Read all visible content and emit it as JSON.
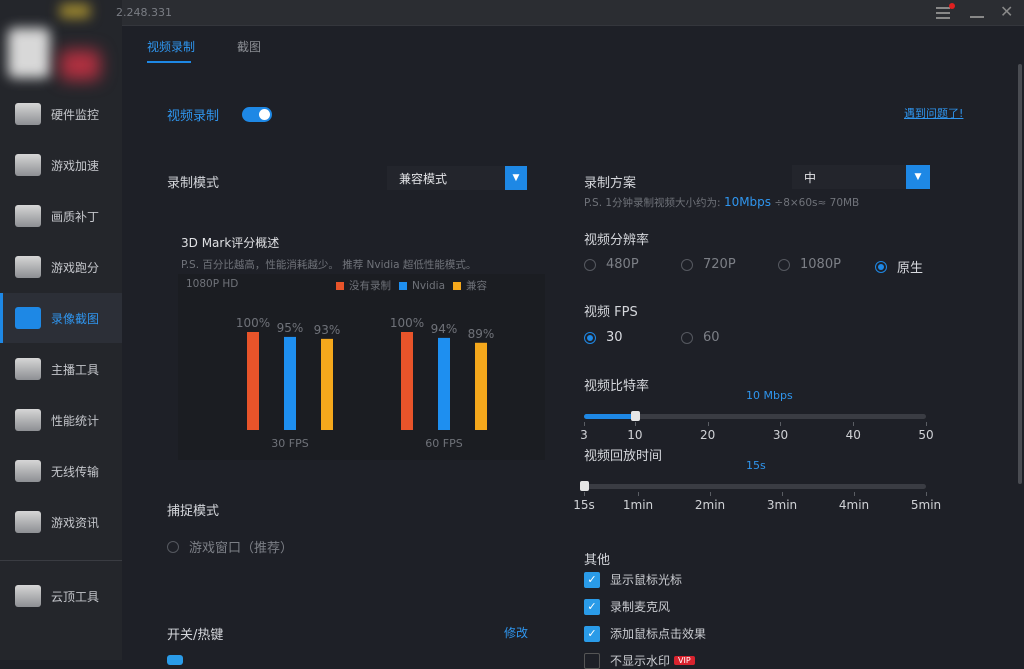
{
  "titlebar": {
    "version": "2.248.331"
  },
  "sidebar": {
    "items": [
      {
        "label": "硬件监控",
        "icon": "hardware-monitor-icon"
      },
      {
        "label": "游戏加速",
        "icon": "rocket-icon"
      },
      {
        "label": "画质补丁",
        "icon": "paint-patch-icon"
      },
      {
        "label": "游戏跑分",
        "icon": "speedometer-icon"
      },
      {
        "label": "录像截图",
        "icon": "video-camera-icon",
        "active": true
      },
      {
        "label": "主播工具",
        "icon": "streamer-icon"
      },
      {
        "label": "性能统计",
        "icon": "chart-clipboard-icon"
      },
      {
        "label": "无线传输",
        "icon": "tablet-icon"
      },
      {
        "label": "游戏资讯",
        "icon": "news-icon"
      }
    ],
    "bottom": {
      "label": "云顶工具",
      "icon": "tft-icon"
    }
  },
  "tabs": [
    {
      "label": "视频录制",
      "active": true
    },
    {
      "label": "截图"
    }
  ],
  "main": {
    "toggle_label": "视频录制",
    "toggle_on": true,
    "help_link": "遇到问题了!",
    "record_mode": {
      "label": "录制模式",
      "value": "兼容模式"
    },
    "chart_title": "3D Mark评分概述",
    "chart_note": "P.S. 百分比越高，性能消耗越少。 推荐 Nvidia 超低性能模式。",
    "capture": {
      "label": "捕捉模式",
      "option": "游戏窗口（推荐）"
    },
    "hotkey": {
      "label": "开关/热键",
      "edit": "修改"
    },
    "scheme": {
      "label": "录制方案",
      "value": "中",
      "note_prefix": "P.S. 1分钟录制视频大小约为:",
      "note_highlight": "10Mbps",
      "note_suffix": "÷8×60s≈ 70MB"
    },
    "resolution": {
      "label": "视频分辨率",
      "options": [
        "480P",
        "720P",
        "1080P",
        "原生"
      ],
      "selected": "原生"
    },
    "fps": {
      "label": "视频 FPS",
      "options": [
        "30",
        "60"
      ],
      "selected": "30"
    },
    "bitrate": {
      "label": "视频比特率",
      "value_label": "10 Mbps",
      "value": 10,
      "min": 3,
      "max": 50,
      "ticks": [
        "3",
        "10",
        "20",
        "30",
        "40",
        "50"
      ]
    },
    "replay": {
      "label": "视频回放时间",
      "value_label": "15s",
      "value": 15,
      "min": 15,
      "max": 300,
      "ticks": [
        "15s",
        "1min",
        "2min",
        "3min",
        "4min",
        "5min"
      ],
      "tick_values": [
        15,
        60,
        120,
        180,
        240,
        300
      ]
    },
    "other": {
      "label": "其他",
      "items": [
        {
          "label": "显示鼠标光标",
          "checked": true
        },
        {
          "label": "录制麦克风",
          "checked": true
        },
        {
          "label": "添加鼠标点击效果",
          "checked": true
        },
        {
          "label": "不显示水印",
          "checked": false,
          "badge": "VIP"
        }
      ]
    }
  },
  "chart_data": {
    "type": "bar",
    "subtitle": "1080P HD",
    "categories": [
      "30 FPS",
      "60 FPS"
    ],
    "series": [
      {
        "name": "没有录制",
        "color": "#e8542a",
        "values": [
          100,
          100
        ]
      },
      {
        "name": "Nvidia",
        "color": "#1e8ff0",
        "values": [
          95,
          94
        ]
      },
      {
        "name": "兼容",
        "color": "#f5a81c",
        "values": [
          93,
          89
        ]
      }
    ],
    "ylim": [
      0,
      100
    ],
    "value_suffix": "%"
  }
}
